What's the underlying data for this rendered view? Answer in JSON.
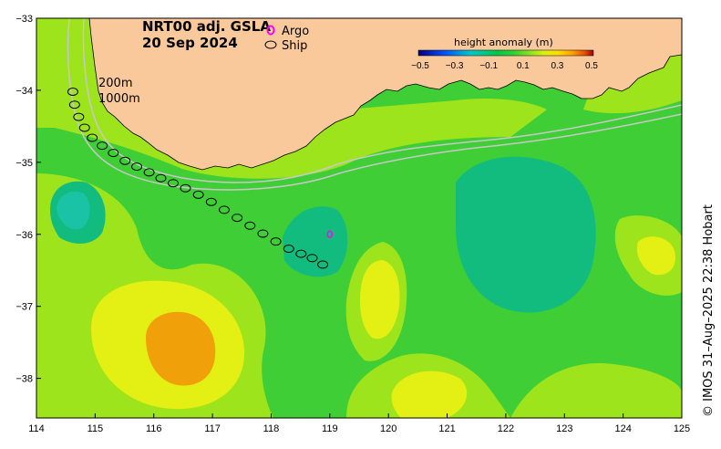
{
  "title": {
    "line1": "NRT00 adj. GSLA",
    "line2": "20 Sep 2024"
  },
  "legend": {
    "argo_label": "Argo",
    "ship_label": "Ship",
    "argo_color": "#ff00ff",
    "ship_color": "#000000"
  },
  "isobaths": {
    "shallow": "200m",
    "deep": "1000m"
  },
  "colorbar": {
    "title": "height anomaly (m)",
    "ticks": [
      "−0.5",
      "−0.3",
      "−0.1",
      "0.1",
      "0.3",
      "0.5"
    ],
    "colors": [
      "#00007f",
      "#0050ff",
      "#00c8c8",
      "#00c84a",
      "#32d232",
      "#96e61e",
      "#dcf014",
      "#ffdc00",
      "#ffa000",
      "#e65000",
      "#a00000"
    ]
  },
  "axes": {
    "x_ticks": [
      "114",
      "115",
      "116",
      "117",
      "118",
      "119",
      "120",
      "121",
      "122",
      "123",
      "124",
      "125"
    ],
    "y_ticks": [
      "−33",
      "−34",
      "−35",
      "−36",
      "−37",
      "−38"
    ],
    "lon_range": [
      114,
      125
    ],
    "lat_range": [
      -38.55,
      -33
    ]
  },
  "colors": {
    "land": "#f9c89b",
    "ocean_base": "#3fce36",
    "light": "#9ee41c",
    "yellow": "#e4ef13",
    "orange": "#f0a008",
    "teal": "#12bc7e"
  },
  "credit": "© IMOS 31–Aug–2025 22:38 Hobart",
  "ship_track": [
    [
      114.62,
      -34.02
    ],
    [
      114.65,
      -34.2
    ],
    [
      114.72,
      -34.37
    ],
    [
      114.82,
      -34.52
    ],
    [
      114.95,
      -34.66
    ],
    [
      115.12,
      -34.77
    ],
    [
      115.31,
      -34.87
    ],
    [
      115.51,
      -34.98
    ],
    [
      115.71,
      -35.06
    ],
    [
      115.92,
      -35.14
    ],
    [
      116.12,
      -35.22
    ],
    [
      116.33,
      -35.29
    ],
    [
      116.54,
      -35.36
    ],
    [
      116.76,
      -35.45
    ],
    [
      116.98,
      -35.55
    ],
    [
      117.2,
      -35.66
    ],
    [
      117.42,
      -35.77
    ],
    [
      117.64,
      -35.88
    ],
    [
      117.86,
      -35.99
    ],
    [
      118.08,
      -36.1
    ],
    [
      118.3,
      -36.2
    ],
    [
      118.51,
      -36.27
    ],
    [
      118.7,
      -36.33
    ],
    [
      118.88,
      -36.42
    ]
  ],
  "argo_floats": [
    [
      119.0,
      -36.0
    ]
  ]
}
